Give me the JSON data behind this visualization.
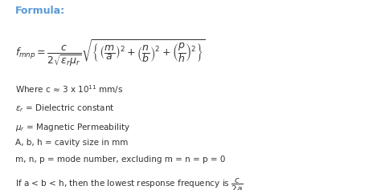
{
  "title": "Formula:",
  "title_color": "#5b9bd5",
  "title_fontsize": 9,
  "bg_color": "#ffffff",
  "formula": "$f_{mnp} = \\dfrac{c}{2\\sqrt{\\varepsilon_r \\mu_r}} \\sqrt{\\left\\{\\left(\\dfrac{m}{a}\\right)^2 + \\left(\\dfrac{n}{b}\\right)^2 + \\left(\\dfrac{p}{h}\\right)^2\\right\\}}$",
  "formula_fontsize": 9,
  "lines": [
    "Where c ≈ 3 x 10$^{11}$ mm/s",
    "$\\varepsilon_r$ = Dielectric constant",
    "$\\mu_r$ = Magnetic Permeability",
    "A, b, h = cavity size in mm",
    "m, n, p = mode number, excluding m = n = p = 0",
    "If a < b < h, then the lowest response frequency is $\\dfrac{c}{2a}$"
  ],
  "text_fontsize": 7.5,
  "text_color": "#333333",
  "figsize": [
    4.74,
    2.37
  ],
  "dpi": 100
}
